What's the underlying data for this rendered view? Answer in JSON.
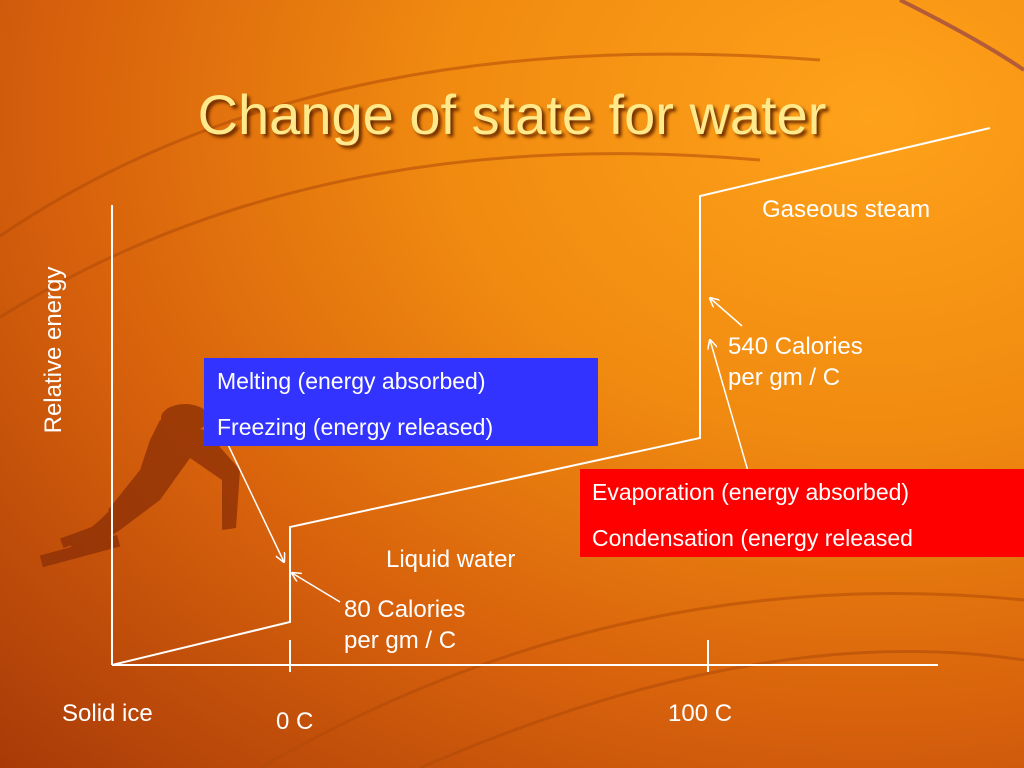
{
  "title": "Change of state for water",
  "axis": {
    "ylabel": "Relative energy"
  },
  "phases": {
    "solid": "Solid ice",
    "liquid": "Liquid water",
    "gas": "Gaseous steam"
  },
  "temperatures": {
    "melt": "0 C",
    "boil": "100 C"
  },
  "heats": {
    "fusion": [
      "80 Calories",
      "per gm / C"
    ],
    "vaporization": [
      "540 Calories",
      "per gm / C"
    ]
  },
  "boxes": {
    "melting": {
      "line1": "Melting (energy absorbed)",
      "line2": "Freezing (energy released)",
      "color": "#3333ff"
    },
    "evaporation": {
      "line1": "Evaporation (energy absorbed)",
      "line2": "Condensation (energy released",
      "color": "#ff0000"
    }
  },
  "colors": {
    "title": "#ffe98a",
    "lines": "#ffffff"
  }
}
